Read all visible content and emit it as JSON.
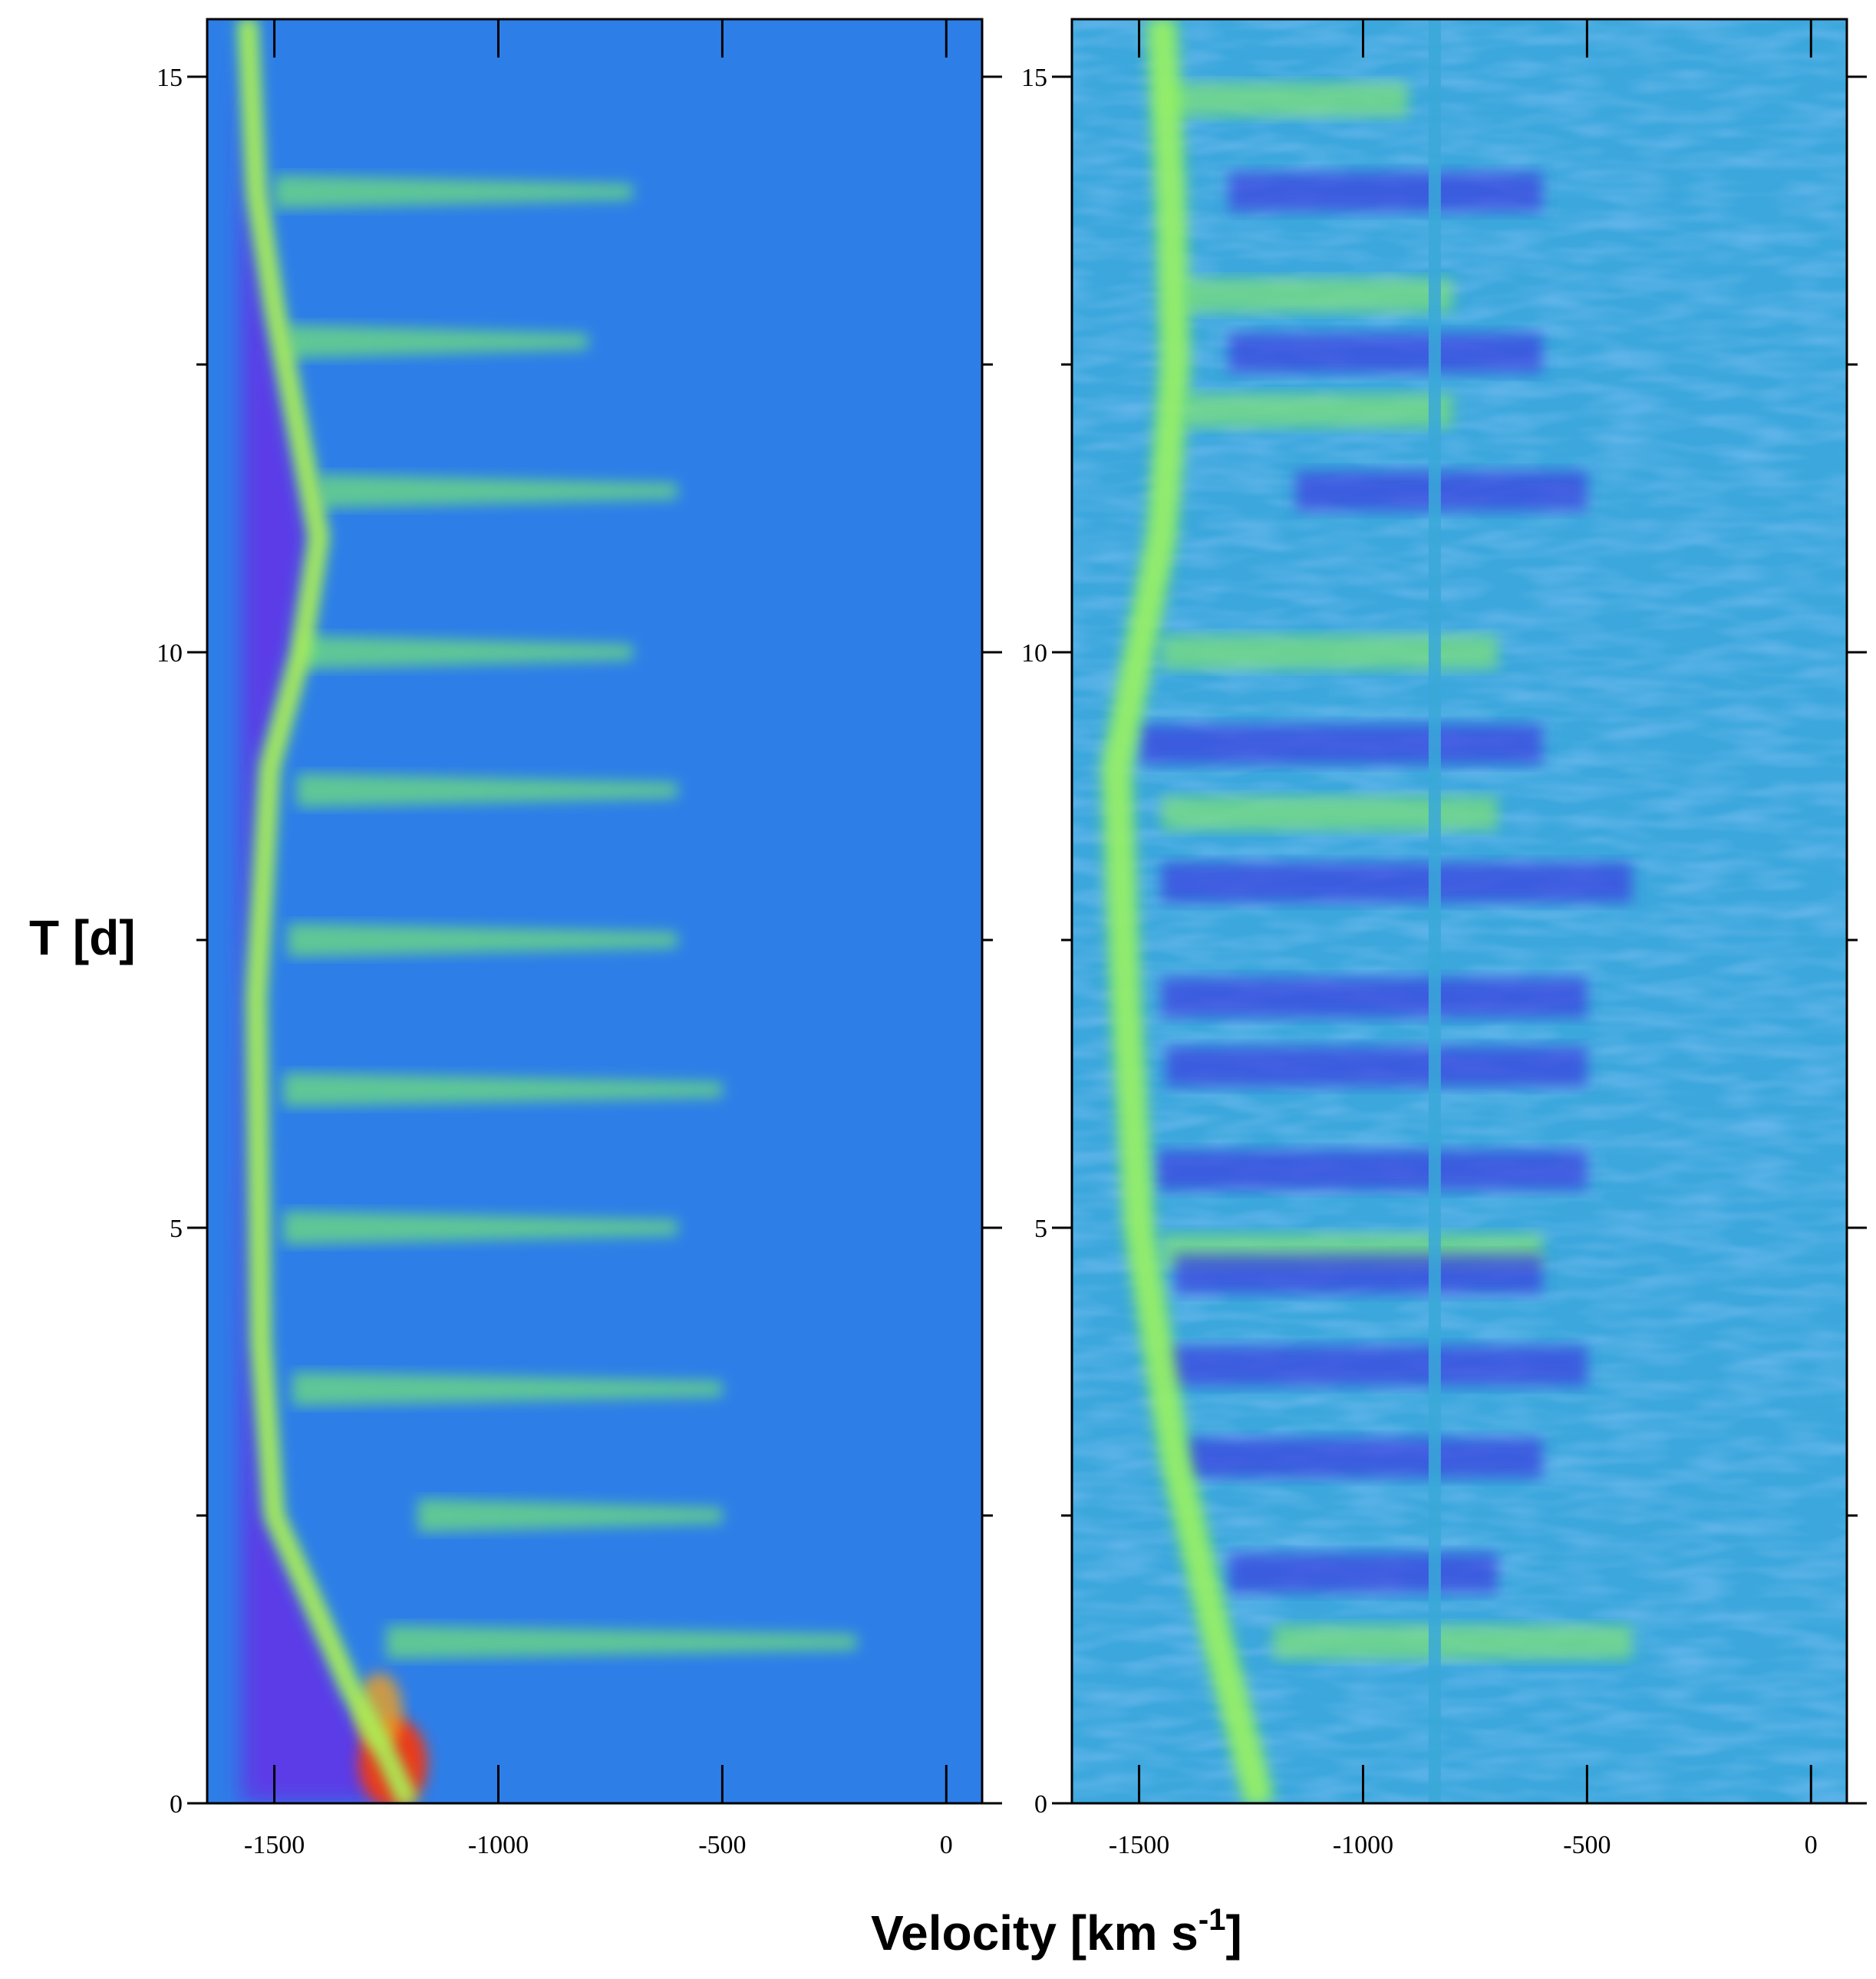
{
  "ylabel": "T [d]",
  "xlabel_main": "Velocity [km s",
  "xlabel_sup": "-1",
  "xlabel_close": "]",
  "chart_data": [
    {
      "type": "heatmap",
      "panel": "left",
      "xlim": [
        -1650,
        80
      ],
      "ylim": [
        0,
        15.5
      ],
      "x_ticks": [
        -1500,
        -1000,
        -500,
        0
      ],
      "x_tick_labels": [
        "-1500",
        "-1000",
        "-500",
        "0"
      ],
      "y_ticks": [
        0,
        5,
        10,
        15
      ],
      "y_tick_labels": [
        "0",
        "5",
        "10",
        "15"
      ],
      "background_color": "#2e7ee8",
      "dark_wedge_color": "#6a25e6",
      "hot_spot_color": "#e83a1a",
      "edge_curve_velocity_vs_T": [
        [
          -1200,
          0
        ],
        [
          -1260,
          0.5
        ],
        [
          -1330,
          1
        ],
        [
          -1420,
          1.8
        ],
        [
          -1500,
          2.5
        ],
        [
          -1530,
          4
        ],
        [
          -1540,
          7
        ],
        [
          -1510,
          9
        ],
        [
          -1440,
          10
        ],
        [
          -1400,
          11
        ],
        [
          -1450,
          12
        ],
        [
          -1500,
          13
        ],
        [
          -1540,
          14
        ],
        [
          -1560,
          15.5
        ]
      ],
      "bands": [
        {
          "T": 1.4,
          "v_start": -1250,
          "v_end": -200
        },
        {
          "T": 2.5,
          "v_start": -1180,
          "v_end": -500
        },
        {
          "T": 3.6,
          "v_start": -1460,
          "v_end": -500
        },
        {
          "T": 5.0,
          "v_start": -1480,
          "v_end": -600
        },
        {
          "T": 6.2,
          "v_start": -1480,
          "v_end": -500
        },
        {
          "T": 7.5,
          "v_start": -1470,
          "v_end": -600
        },
        {
          "T": 8.8,
          "v_start": -1450,
          "v_end": -600
        },
        {
          "T": 10.0,
          "v_start": -1440,
          "v_end": -700
        },
        {
          "T": 11.4,
          "v_start": -1400,
          "v_end": -600
        },
        {
          "T": 12.7,
          "v_start": -1470,
          "v_end": -800
        },
        {
          "T": 14.0,
          "v_start": -1500,
          "v_end": -700
        }
      ]
    },
    {
      "type": "heatmap",
      "panel": "right",
      "xlim": [
        -1650,
        80
      ],
      "ylim": [
        0,
        15.5
      ],
      "x_ticks": [
        -1500,
        -1000,
        -500,
        0
      ],
      "x_tick_labels": [
        "-1500",
        "-1000",
        "-500",
        "0"
      ],
      "y_ticks": [
        0,
        5,
        10,
        15
      ],
      "y_tick_labels": [
        "0",
        "5",
        "10",
        "15"
      ],
      "background_color": "#3ba7dc",
      "gap_velocity": -840,
      "edge_curve_velocity_vs_T": [
        [
          -1230,
          0
        ],
        [
          -1330,
          1.5
        ],
        [
          -1420,
          3
        ],
        [
          -1500,
          5
        ],
        [
          -1530,
          7
        ],
        [
          -1550,
          9
        ],
        [
          -1450,
          11
        ],
        [
          -1420,
          12.5
        ],
        [
          -1430,
          14
        ],
        [
          -1450,
          15.5
        ]
      ],
      "blue_bands": [
        {
          "T": 2.0,
          "v_start": -1300,
          "v_end": -700
        },
        {
          "T": 3.0,
          "v_start": -1400,
          "v_end": -600
        },
        {
          "T": 3.8,
          "v_start": -1450,
          "v_end": -500
        },
        {
          "T": 4.6,
          "v_start": -1420,
          "v_end": -600
        },
        {
          "T": 5.5,
          "v_start": -1460,
          "v_end": -500
        },
        {
          "T": 6.4,
          "v_start": -1440,
          "v_end": -500
        },
        {
          "T": 7.0,
          "v_start": -1450,
          "v_end": -500
        },
        {
          "T": 8.0,
          "v_start": -1450,
          "v_end": -400
        },
        {
          "T": 9.2,
          "v_start": -1500,
          "v_end": -600
        },
        {
          "T": 11.4,
          "v_start": -1150,
          "v_end": -500
        },
        {
          "T": 12.6,
          "v_start": -1300,
          "v_end": -600
        },
        {
          "T": 14.0,
          "v_start": -1300,
          "v_end": -600
        }
      ],
      "green_bands": [
        {
          "T": 1.4,
          "v_start": -1200,
          "v_end": -400
        },
        {
          "T": 4.8,
          "v_start": -1450,
          "v_end": -600
        },
        {
          "T": 8.6,
          "v_start": -1450,
          "v_end": -700
        },
        {
          "T": 10.0,
          "v_start": -1450,
          "v_end": -700
        },
        {
          "T": 12.1,
          "v_start": -1400,
          "v_end": -800
        },
        {
          "T": 13.1,
          "v_start": -1400,
          "v_end": -800
        },
        {
          "T": 14.8,
          "v_start": -1450,
          "v_end": -900
        }
      ]
    }
  ]
}
